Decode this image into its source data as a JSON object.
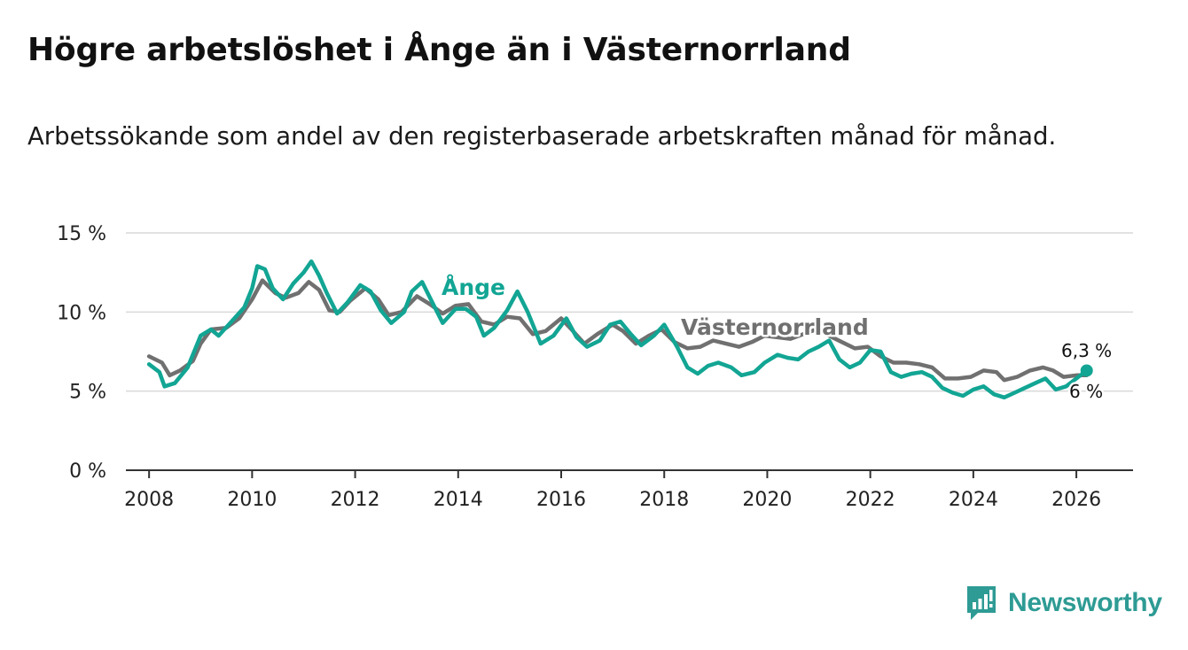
{
  "title": "Högre arbetslöshet i Ånge än i Västernorrland",
  "subtitle": "Arbetssökande som andel av den registerbaserade arbetskraften månad för månad.",
  "brand": {
    "name": "Newsworthy",
    "icon": "bar-chart-logo-icon"
  },
  "colors": {
    "ange": "#12a594",
    "vasternorrland": "#707070",
    "grid": "#d9d9d9",
    "axis": "#333333",
    "brand": "#2e9b94"
  },
  "chart_data": {
    "type": "line",
    "title": "Högre arbetslöshet i Ånge än i Västernorrland",
    "subtitle": "Arbetssökande som andel av den registerbaserade arbetskraften månad för månad.",
    "xlabel": "",
    "ylabel": "",
    "xlim": [
      2007.55,
      2027.1
    ],
    "ylim": [
      0,
      15
    ],
    "x_ticks": [
      2008,
      2010,
      2012,
      2014,
      2016,
      2018,
      2020,
      2022,
      2024,
      2026
    ],
    "x_tick_labels": [
      "2008",
      "2010",
      "2012",
      "2014",
      "2016",
      "2018",
      "2020",
      "2022",
      "2024",
      "2026"
    ],
    "y_ticks": [
      0,
      5,
      10,
      15
    ],
    "y_tick_labels": [
      "0 %",
      "5 %",
      "10 %",
      "15 %"
    ],
    "grid": true,
    "series": [
      {
        "name": "Västernorrland",
        "label": "Västernorrland",
        "end_label": "6 %",
        "points": [
          [
            2008.0,
            7.2
          ],
          [
            2008.25,
            6.8
          ],
          [
            2008.4,
            6.0
          ],
          [
            2008.6,
            6.3
          ],
          [
            2008.85,
            6.9
          ],
          [
            2009.0,
            8.0
          ],
          [
            2009.2,
            8.9
          ],
          [
            2009.5,
            9.0
          ],
          [
            2009.75,
            9.6
          ],
          [
            2010.0,
            10.8
          ],
          [
            2010.2,
            12.0
          ],
          [
            2010.45,
            11.2
          ],
          [
            2010.65,
            10.9
          ],
          [
            2010.9,
            11.2
          ],
          [
            2011.1,
            11.9
          ],
          [
            2011.3,
            11.4
          ],
          [
            2011.5,
            10.1
          ],
          [
            2011.7,
            10.0
          ],
          [
            2011.9,
            10.7
          ],
          [
            2012.2,
            11.5
          ],
          [
            2012.45,
            10.8
          ],
          [
            2012.65,
            9.8
          ],
          [
            2012.9,
            10.0
          ],
          [
            2013.2,
            11.0
          ],
          [
            2013.45,
            10.5
          ],
          [
            2013.7,
            9.9
          ],
          [
            2013.95,
            10.4
          ],
          [
            2014.2,
            10.5
          ],
          [
            2014.45,
            9.4
          ],
          [
            2014.7,
            9.2
          ],
          [
            2014.95,
            9.7
          ],
          [
            2015.2,
            9.6
          ],
          [
            2015.45,
            8.6
          ],
          [
            2015.7,
            8.8
          ],
          [
            2016.0,
            9.6
          ],
          [
            2016.2,
            8.9
          ],
          [
            2016.45,
            8.0
          ],
          [
            2016.7,
            8.6
          ],
          [
            2017.0,
            9.2
          ],
          [
            2017.2,
            8.8
          ],
          [
            2017.45,
            8.0
          ],
          [
            2017.7,
            8.5
          ],
          [
            2017.95,
            8.9
          ],
          [
            2018.2,
            8.1
          ],
          [
            2018.45,
            7.7
          ],
          [
            2018.7,
            7.8
          ],
          [
            2018.95,
            8.2
          ],
          [
            2019.2,
            8.0
          ],
          [
            2019.45,
            7.8
          ],
          [
            2019.7,
            8.1
          ],
          [
            2019.95,
            8.5
          ],
          [
            2020.2,
            8.4
          ],
          [
            2020.45,
            8.3
          ],
          [
            2020.7,
            8.6
          ],
          [
            2020.95,
            8.9
          ],
          [
            2021.2,
            8.5
          ],
          [
            2021.45,
            8.1
          ],
          [
            2021.7,
            7.7
          ],
          [
            2021.95,
            7.8
          ],
          [
            2022.2,
            7.2
          ],
          [
            2022.45,
            6.8
          ],
          [
            2022.7,
            6.8
          ],
          [
            2022.95,
            6.7
          ],
          [
            2023.2,
            6.5
          ],
          [
            2023.45,
            5.8
          ],
          [
            2023.7,
            5.8
          ],
          [
            2023.95,
            5.9
          ],
          [
            2024.2,
            6.3
          ],
          [
            2024.45,
            6.2
          ],
          [
            2024.6,
            5.7
          ],
          [
            2024.85,
            5.9
          ],
          [
            2025.1,
            6.3
          ],
          [
            2025.35,
            6.5
          ],
          [
            2025.55,
            6.3
          ],
          [
            2025.75,
            5.9
          ],
          [
            2026.0,
            6.0
          ],
          [
            2026.2,
            6.0
          ]
        ]
      },
      {
        "name": "Ånge",
        "label": "Ånge",
        "end_label": "6,3 %",
        "points": [
          [
            2008.0,
            6.7
          ],
          [
            2008.2,
            6.2
          ],
          [
            2008.3,
            5.3
          ],
          [
            2008.5,
            5.5
          ],
          [
            2008.75,
            6.5
          ],
          [
            2009.0,
            8.5
          ],
          [
            2009.2,
            8.9
          ],
          [
            2009.35,
            8.5
          ],
          [
            2009.6,
            9.4
          ],
          [
            2009.85,
            10.3
          ],
          [
            2010.0,
            11.5
          ],
          [
            2010.1,
            12.9
          ],
          [
            2010.25,
            12.7
          ],
          [
            2010.4,
            11.5
          ],
          [
            2010.6,
            10.8
          ],
          [
            2010.8,
            11.8
          ],
          [
            2011.0,
            12.5
          ],
          [
            2011.15,
            13.2
          ],
          [
            2011.3,
            12.3
          ],
          [
            2011.45,
            11.2
          ],
          [
            2011.65,
            9.9
          ],
          [
            2011.85,
            10.6
          ],
          [
            2012.1,
            11.7
          ],
          [
            2012.3,
            11.3
          ],
          [
            2012.5,
            10.1
          ],
          [
            2012.7,
            9.3
          ],
          [
            2012.95,
            10.0
          ],
          [
            2013.1,
            11.3
          ],
          [
            2013.3,
            11.9
          ],
          [
            2013.5,
            10.6
          ],
          [
            2013.7,
            9.3
          ],
          [
            2013.95,
            10.2
          ],
          [
            2014.15,
            10.2
          ],
          [
            2014.35,
            9.7
          ],
          [
            2014.5,
            8.5
          ],
          [
            2014.7,
            9.0
          ],
          [
            2014.95,
            10.1
          ],
          [
            2015.15,
            11.3
          ],
          [
            2015.35,
            10.0
          ],
          [
            2015.6,
            8.0
          ],
          [
            2015.85,
            8.5
          ],
          [
            2016.1,
            9.6
          ],
          [
            2016.3,
            8.4
          ],
          [
            2016.5,
            7.8
          ],
          [
            2016.75,
            8.2
          ],
          [
            2016.95,
            9.2
          ],
          [
            2017.15,
            9.4
          ],
          [
            2017.35,
            8.6
          ],
          [
            2017.55,
            7.9
          ],
          [
            2017.8,
            8.5
          ],
          [
            2018.0,
            9.2
          ],
          [
            2018.25,
            7.8
          ],
          [
            2018.45,
            6.5
          ],
          [
            2018.65,
            6.1
          ],
          [
            2018.85,
            6.6
          ],
          [
            2019.05,
            6.8
          ],
          [
            2019.3,
            6.5
          ],
          [
            2019.5,
            6.0
          ],
          [
            2019.75,
            6.2
          ],
          [
            2019.95,
            6.8
          ],
          [
            2020.2,
            7.3
          ],
          [
            2020.4,
            7.1
          ],
          [
            2020.6,
            7.0
          ],
          [
            2020.8,
            7.5
          ],
          [
            2021.0,
            7.8
          ],
          [
            2021.2,
            8.2
          ],
          [
            2021.4,
            7.0
          ],
          [
            2021.6,
            6.5
          ],
          [
            2021.8,
            6.8
          ],
          [
            2022.0,
            7.6
          ],
          [
            2022.2,
            7.5
          ],
          [
            2022.4,
            6.2
          ],
          [
            2022.6,
            5.9
          ],
          [
            2022.8,
            6.1
          ],
          [
            2023.0,
            6.2
          ],
          [
            2023.2,
            5.9
          ],
          [
            2023.4,
            5.2
          ],
          [
            2023.6,
            4.9
          ],
          [
            2023.8,
            4.7
          ],
          [
            2024.0,
            5.1
          ],
          [
            2024.2,
            5.3
          ],
          [
            2024.4,
            4.8
          ],
          [
            2024.6,
            4.6
          ],
          [
            2024.8,
            4.9
          ],
          [
            2025.0,
            5.2
          ],
          [
            2025.2,
            5.5
          ],
          [
            2025.4,
            5.8
          ],
          [
            2025.6,
            5.1
          ],
          [
            2025.8,
            5.3
          ],
          [
            2026.0,
            5.8
          ],
          [
            2026.2,
            6.3
          ]
        ]
      }
    ]
  }
}
